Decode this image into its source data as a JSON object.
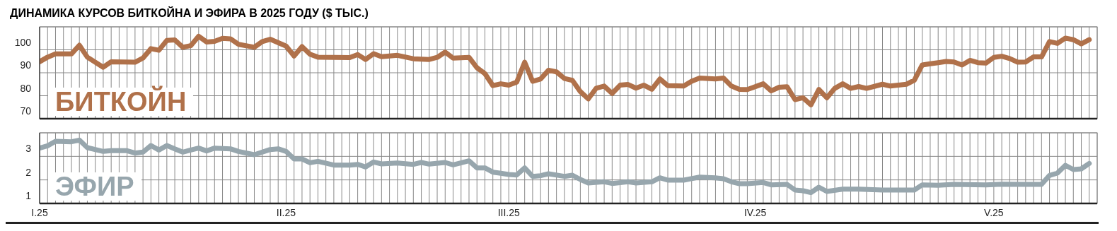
{
  "chart_data": [
    {
      "type": "line",
      "title": "ДИНАМИКА КУРСОВ БИТКОЙНА И ЭФИРА В 2025 ГОДУ ($ ТЫС.)",
      "x": [
        "2025-01-01",
        "2025-01-02",
        "2025-01-03",
        "2025-01-05",
        "2025-01-06",
        "2025-01-07",
        "2025-01-09",
        "2025-01-10",
        "2025-01-13",
        "2025-01-14",
        "2025-01-15",
        "2025-01-16",
        "2025-01-17",
        "2025-01-18",
        "2025-01-19",
        "2025-01-20",
        "2025-01-21",
        "2025-01-22",
        "2025-01-23",
        "2025-01-24",
        "2025-01-25",
        "2025-01-26",
        "2025-01-28",
        "2025-01-29",
        "2025-01-30",
        "2025-02-01",
        "2025-02-02",
        "2025-02-03",
        "2025-02-04",
        "2025-02-05",
        "2025-02-09",
        "2025-02-10",
        "2025-02-11",
        "2025-02-12",
        "2025-02-13",
        "2025-02-15",
        "2025-02-17",
        "2025-02-19",
        "2025-02-20",
        "2025-02-21",
        "2025-02-22",
        "2025-02-24",
        "2025-02-25",
        "2025-02-26",
        "2025-02-27",
        "2025-02-28",
        "2025-03-01",
        "2025-03-02",
        "2025-03-03",
        "2025-03-04",
        "2025-03-05",
        "2025-03-06",
        "2025-03-07",
        "2025-03-08",
        "2025-03-09",
        "2025-03-10",
        "2025-03-11",
        "2025-03-12",
        "2025-03-13",
        "2025-03-14",
        "2025-03-15",
        "2025-03-16",
        "2025-03-17",
        "2025-03-18",
        "2025-03-19",
        "2025-03-20",
        "2025-03-21",
        "2025-03-23",
        "2025-03-24",
        "2025-03-25",
        "2025-03-27",
        "2025-03-28",
        "2025-03-29",
        "2025-03-30",
        "2025-03-31",
        "2025-04-02",
        "2025-04-03",
        "2025-04-04",
        "2025-04-05",
        "2025-04-06",
        "2025-04-07",
        "2025-04-08",
        "2025-04-09",
        "2025-04-10",
        "2025-04-11",
        "2025-04-12",
        "2025-04-13",
        "2025-04-14",
        "2025-04-15",
        "2025-04-17",
        "2025-04-18",
        "2025-04-20",
        "2025-04-21",
        "2025-04-22",
        "2025-04-23",
        "2025-04-24",
        "2025-04-25",
        "2025-04-26",
        "2025-04-27",
        "2025-04-28",
        "2025-04-29",
        "2025-04-30",
        "2025-05-01",
        "2025-05-02",
        "2025-05-03",
        "2025-05-04",
        "2025-05-05",
        "2025-05-06",
        "2025-05-07",
        "2025-05-08",
        "2025-05-09",
        "2025-05-10",
        "2025-05-11",
        "2025-05-12",
        "2025-05-13"
      ],
      "series": [
        {
          "name": "БИТКОЙН",
          "color": "#b0714a",
          "values": [
            94.8,
            96.8,
            98.2,
            98.2,
            102.0,
            96.8,
            92.4,
            94.8,
            94.6,
            96.4,
            100.5,
            99.8,
            104.1,
            104.3,
            101.1,
            101.8,
            105.9,
            103.4,
            103.7,
            105.0,
            104.8,
            102.4,
            101.1,
            103.6,
            104.6,
            101.6,
            97.3,
            101.4,
            98.1,
            96.8,
            96.6,
            97.9,
            95.8,
            98.3,
            97.0,
            97.6,
            96.1,
            95.8,
            96.7,
            99.0,
            96.4,
            96.7,
            92.2,
            89.6,
            84.4,
            85.2,
            84.6,
            85.9,
            94.6,
            86.3,
            87.3,
            91.1,
            90.4,
            87.5,
            86.7,
            81.8,
            78.6,
            83.3,
            84.2,
            81.0,
            84.6,
            84.9,
            83.3,
            84.6,
            82.8,
            87.3,
            84.4,
            84.2,
            86.3,
            87.7,
            87.3,
            87.7,
            84.2,
            82.8,
            82.7,
            85.2,
            82.1,
            83.7,
            83.9,
            78.3,
            79.1,
            76.0,
            82.7,
            79.1,
            83.2,
            85.2,
            83.2,
            84.0,
            83.2,
            85.0,
            84.2,
            85.0,
            86.7,
            93.4,
            93.9,
            94.4,
            94.9,
            94.7,
            93.4,
            95.4,
            94.4,
            94.2,
            96.7,
            97.2,
            96.2,
            94.6,
            94.7,
            96.9,
            96.9,
            103.6,
            102.8,
            105.1,
            104.4,
            102.6,
            104.4
          ]
        }
      ],
      "xlim": [
        "2025-01-01",
        "2025-05-14"
      ],
      "xticks": [
        {
          "value": "2025-01-01",
          "label": null
        },
        {
          "value": "2025-01-02",
          "label": null
        },
        {
          "value": "2025-01-03",
          "label": null
        },
        {
          "value": "2025-01-04",
          "label": null
        },
        {
          "value": "2025-01-05",
          "label": null
        },
        {
          "value": "2025-01-06",
          "label": null
        },
        {
          "value": "2025-01-07",
          "label": null
        },
        {
          "value": "2025-01-08",
          "label": null
        },
        {
          "value": "2025-01-09",
          "label": null
        },
        {
          "value": "2025-01-10",
          "label": null
        },
        {
          "value": "2025-01-11",
          "label": null
        },
        {
          "value": "2025-01-12",
          "label": null
        },
        {
          "value": "2025-01-13",
          "label": null
        },
        {
          "value": "2025-01-14",
          "label": null
        },
        {
          "value": "2025-01-15",
          "label": null
        },
        {
          "value": "2025-01-16",
          "label": null
        },
        {
          "value": "2025-01-17",
          "label": null
        },
        {
          "value": "2025-01-18",
          "label": null
        },
        {
          "value": "2025-01-19",
          "label": null
        },
        {
          "value": "2025-01-20",
          "label": null
        },
        {
          "value": "2025-01-21",
          "label": null
        },
        {
          "value": "2025-01-22",
          "label": null
        },
        {
          "value": "2025-01-23",
          "label": null
        },
        {
          "value": "2025-01-24",
          "label": null
        },
        {
          "value": "2025-01-25",
          "label": null
        },
        {
          "value": "2025-01-26",
          "label": null
        },
        {
          "value": "2025-01-27",
          "label": null
        },
        {
          "value": "2025-01-28",
          "label": null
        },
        {
          "value": "2025-01-29",
          "label": null
        },
        {
          "value": "2025-01-30",
          "label": null
        },
        {
          "value": "2025-01-31",
          "label": null
        },
        {
          "value": "2025-02-01",
          "label": null
        },
        {
          "value": "2025-02-02",
          "label": null
        },
        {
          "value": "2025-02-03",
          "label": null
        },
        {
          "value": "2025-02-04",
          "label": null
        },
        {
          "value": "2025-02-05",
          "label": null
        },
        {
          "value": "2025-02-06",
          "label": null
        },
        {
          "value": "2025-02-07",
          "label": null
        },
        {
          "value": "2025-02-08",
          "label": null
        },
        {
          "value": "2025-02-09",
          "label": null
        },
        {
          "value": "2025-02-10",
          "label": null
        },
        {
          "value": "2025-02-11",
          "label": null
        },
        {
          "value": "2025-02-12",
          "label": null
        },
        {
          "value": "2025-02-13",
          "label": null
        },
        {
          "value": "2025-02-14",
          "label": null
        },
        {
          "value": "2025-02-15",
          "label": null
        },
        {
          "value": "2025-02-16",
          "label": null
        },
        {
          "value": "2025-02-17",
          "label": null
        },
        {
          "value": "2025-02-18",
          "label": null
        },
        {
          "value": "2025-02-19",
          "label": null
        },
        {
          "value": "2025-02-20",
          "label": null
        },
        {
          "value": "2025-02-21",
          "label": null
        },
        {
          "value": "2025-02-22",
          "label": null
        },
        {
          "value": "2025-02-23",
          "label": null
        },
        {
          "value": "2025-02-24",
          "label": null
        },
        {
          "value": "2025-02-25",
          "label": null
        },
        {
          "value": "2025-02-26",
          "label": null
        },
        {
          "value": "2025-02-27",
          "label": null
        },
        {
          "value": "2025-02-28",
          "label": null
        },
        {
          "value": "2025-03-01",
          "label": null
        },
        {
          "value": "2025-03-02",
          "label": null
        },
        {
          "value": "2025-03-03",
          "label": null
        },
        {
          "value": "2025-03-04",
          "label": null
        },
        {
          "value": "2025-03-05",
          "label": null
        },
        {
          "value": "2025-03-06",
          "label": null
        },
        {
          "value": "2025-03-07",
          "label": null
        },
        {
          "value": "2025-03-08",
          "label": null
        },
        {
          "value": "2025-03-09",
          "label": null
        },
        {
          "value": "2025-03-10",
          "label": null
        },
        {
          "value": "2025-03-11",
          "label": null
        },
        {
          "value": "2025-03-12",
          "label": null
        },
        {
          "value": "2025-03-13",
          "label": null
        },
        {
          "value": "2025-03-14",
          "label": null
        },
        {
          "value": "2025-03-15",
          "label": null
        },
        {
          "value": "2025-03-16",
          "label": null
        },
        {
          "value": "2025-03-17",
          "label": null
        },
        {
          "value": "2025-03-18",
          "label": null
        },
        {
          "value": "2025-03-19",
          "label": null
        },
        {
          "value": "2025-03-20",
          "label": null
        },
        {
          "value": "2025-03-21",
          "label": null
        },
        {
          "value": "2025-03-22",
          "label": null
        },
        {
          "value": "2025-03-23",
          "label": null
        },
        {
          "value": "2025-03-24",
          "label": null
        },
        {
          "value": "2025-03-25",
          "label": null
        },
        {
          "value": "2025-03-26",
          "label": null
        },
        {
          "value": "2025-03-27",
          "label": null
        },
        {
          "value": "2025-03-28",
          "label": null
        },
        {
          "value": "2025-03-29",
          "label": null
        },
        {
          "value": "2025-03-30",
          "label": null
        },
        {
          "value": "2025-03-31",
          "label": null
        },
        {
          "value": "2025-04-01",
          "label": null
        },
        {
          "value": "2025-04-02",
          "label": null
        },
        {
          "value": "2025-04-03",
          "label": null
        },
        {
          "value": "2025-04-04",
          "label": null
        },
        {
          "value": "2025-04-05",
          "label": null
        },
        {
          "value": "2025-04-06",
          "label": null
        },
        {
          "value": "2025-04-07",
          "label": null
        },
        {
          "value": "2025-04-08",
          "label": null
        },
        {
          "value": "2025-04-09",
          "label": null
        },
        {
          "value": "2025-04-10",
          "label": null
        },
        {
          "value": "2025-04-11",
          "label": null
        },
        {
          "value": "2025-04-12",
          "label": null
        },
        {
          "value": "2025-04-13",
          "label": null
        },
        {
          "value": "2025-04-14",
          "label": null
        },
        {
          "value": "2025-04-15",
          "label": null
        },
        {
          "value": "2025-04-16",
          "label": null
        },
        {
          "value": "2025-04-17",
          "label": null
        },
        {
          "value": "2025-04-18",
          "label": null
        },
        {
          "value": "2025-04-19",
          "label": null
        },
        {
          "value": "2025-04-20",
          "label": null
        },
        {
          "value": "2025-04-21",
          "label": null
        },
        {
          "value": "2025-04-22",
          "label": null
        },
        {
          "value": "2025-04-23",
          "label": null
        },
        {
          "value": "2025-04-24",
          "label": null
        },
        {
          "value": "2025-04-25",
          "label": null
        },
        {
          "value": "2025-04-26",
          "label": null
        },
        {
          "value": "2025-04-27",
          "label": null
        },
        {
          "value": "2025-04-28",
          "label": null
        },
        {
          "value": "2025-04-29",
          "label": null
        },
        {
          "value": "2025-04-30",
          "label": null
        },
        {
          "value": "2025-05-01",
          "label": null
        },
        {
          "value": "2025-05-02",
          "label": null
        },
        {
          "value": "2025-05-03",
          "label": null
        },
        {
          "value": "2025-05-04",
          "label": null
        },
        {
          "value": "2025-05-05",
          "label": null
        },
        {
          "value": "2025-05-06",
          "label": null
        },
        {
          "value": "2025-05-07",
          "label": null
        },
        {
          "value": "2025-05-08",
          "label": null
        },
        {
          "value": "2025-05-09",
          "label": null
        },
        {
          "value": "2025-05-10",
          "label": null
        },
        {
          "value": "2025-05-11",
          "label": null
        },
        {
          "value": "2025-05-12",
          "label": null
        },
        {
          "value": "2025-05-13",
          "label": null
        }
      ],
      "ylim": [
        70,
        110
      ],
      "yticks": [
        70,
        80,
        90,
        100
      ],
      "grid": true,
      "legend": false,
      "marker": "none",
      "line_style": "solid",
      "tick_labels": "y"
    },
    {
      "type": "line",
      "x": [
        "2025-01-01",
        "2025-01-02",
        "2025-01-03",
        "2025-01-05",
        "2025-01-06",
        "2025-01-07",
        "2025-01-09",
        "2025-01-10",
        "2025-01-12",
        "2025-01-13",
        "2025-01-14",
        "2025-01-15",
        "2025-01-16",
        "2025-01-17",
        "2025-01-18",
        "2025-01-19",
        "2025-01-20",
        "2025-01-21",
        "2025-01-22",
        "2025-01-23",
        "2025-01-25",
        "2025-01-26",
        "2025-01-28",
        "2025-01-30",
        "2025-01-31",
        "2025-02-01",
        "2025-02-02",
        "2025-02-03",
        "2025-02-04",
        "2025-02-05",
        "2025-02-07",
        "2025-02-09",
        "2025-02-10",
        "2025-02-11",
        "2025-02-12",
        "2025-02-13",
        "2025-02-15",
        "2025-02-17",
        "2025-02-18",
        "2025-02-19",
        "2025-02-21",
        "2025-02-22",
        "2025-02-24",
        "2025-02-25",
        "2025-02-26",
        "2025-02-27",
        "2025-02-28",
        "2025-03-01",
        "2025-03-02",
        "2025-03-03",
        "2025-03-04",
        "2025-03-05",
        "2025-03-06",
        "2025-03-08",
        "2025-03-09",
        "2025-03-10",
        "2025-03-11",
        "2025-03-13",
        "2025-03-14",
        "2025-03-16",
        "2025-03-17",
        "2025-03-19",
        "2025-03-20",
        "2025-03-21",
        "2025-03-23",
        "2025-03-25",
        "2025-03-27",
        "2025-03-28",
        "2025-03-29",
        "2025-03-30",
        "2025-03-31",
        "2025-04-02",
        "2025-04-03",
        "2025-04-05",
        "2025-04-06",
        "2025-04-07",
        "2025-04-08",
        "2025-04-09",
        "2025-04-10",
        "2025-04-12",
        "2025-04-14",
        "2025-04-17",
        "2025-04-20",
        "2025-04-21",
        "2025-04-22",
        "2025-04-24",
        "2025-04-26",
        "2025-04-30",
        "2025-05-02",
        "2025-05-05",
        "2025-05-07",
        "2025-05-08",
        "2025-05-09",
        "2025-05-10",
        "2025-05-11",
        "2025-05-12",
        "2025-05-13"
      ],
      "series": [
        {
          "name": "ЭФИР",
          "color": "#97a6ad",
          "values": [
            3.35,
            3.45,
            3.64,
            3.62,
            3.69,
            3.37,
            3.21,
            3.24,
            3.24,
            3.14,
            3.18,
            3.46,
            3.27,
            3.46,
            3.32,
            3.18,
            3.27,
            3.35,
            3.23,
            3.35,
            3.32,
            3.21,
            3.07,
            3.29,
            3.32,
            3.21,
            2.89,
            2.89,
            2.73,
            2.79,
            2.63,
            2.63,
            2.66,
            2.55,
            2.76,
            2.68,
            2.72,
            2.66,
            2.74,
            2.67,
            2.74,
            2.64,
            2.81,
            2.51,
            2.51,
            2.33,
            2.28,
            2.23,
            2.21,
            2.51,
            2.15,
            2.18,
            2.26,
            2.15,
            2.2,
            2.02,
            1.87,
            1.92,
            1.85,
            1.92,
            1.87,
            1.92,
            2.09,
            1.99,
            1.99,
            2.12,
            2.09,
            2.05,
            1.92,
            1.84,
            1.84,
            1.89,
            1.79,
            1.81,
            1.57,
            1.54,
            1.46,
            1.69,
            1.51,
            1.61,
            1.61,
            1.57,
            1.57,
            1.57,
            1.79,
            1.77,
            1.81,
            1.79,
            1.82,
            1.81,
            1.81,
            2.19,
            2.29,
            2.62,
            2.44,
            2.47,
            2.7
          ]
        }
      ],
      "xlim": [
        "2025-01-01",
        "2025-05-14"
      ],
      "xticks": [
        {
          "value": "2025-01-01",
          "label": "I.25"
        },
        {
          "value": "2025-01-02",
          "label": null
        },
        {
          "value": "2025-01-03",
          "label": null
        },
        {
          "value": "2025-01-04",
          "label": null
        },
        {
          "value": "2025-01-05",
          "label": null
        },
        {
          "value": "2025-01-06",
          "label": null
        },
        {
          "value": "2025-01-07",
          "label": null
        },
        {
          "value": "2025-01-08",
          "label": null
        },
        {
          "value": "2025-01-09",
          "label": null
        },
        {
          "value": "2025-01-10",
          "label": null
        },
        {
          "value": "2025-01-11",
          "label": null
        },
        {
          "value": "2025-01-12",
          "label": null
        },
        {
          "value": "2025-01-13",
          "label": null
        },
        {
          "value": "2025-01-14",
          "label": null
        },
        {
          "value": "2025-01-15",
          "label": null
        },
        {
          "value": "2025-01-16",
          "label": null
        },
        {
          "value": "2025-01-17",
          "label": null
        },
        {
          "value": "2025-01-18",
          "label": null
        },
        {
          "value": "2025-01-19",
          "label": null
        },
        {
          "value": "2025-01-20",
          "label": null
        },
        {
          "value": "2025-01-21",
          "label": null
        },
        {
          "value": "2025-01-22",
          "label": null
        },
        {
          "value": "2025-01-23",
          "label": null
        },
        {
          "value": "2025-01-24",
          "label": null
        },
        {
          "value": "2025-01-25",
          "label": null
        },
        {
          "value": "2025-01-26",
          "label": null
        },
        {
          "value": "2025-01-27",
          "label": null
        },
        {
          "value": "2025-01-28",
          "label": null
        },
        {
          "value": "2025-01-29",
          "label": null
        },
        {
          "value": "2025-01-30",
          "label": null
        },
        {
          "value": "2025-01-31",
          "label": null
        },
        {
          "value": "2025-02-01",
          "label": "II.25"
        },
        {
          "value": "2025-02-02",
          "label": null
        },
        {
          "value": "2025-02-03",
          "label": null
        },
        {
          "value": "2025-02-04",
          "label": null
        },
        {
          "value": "2025-02-05",
          "label": null
        },
        {
          "value": "2025-02-06",
          "label": null
        },
        {
          "value": "2025-02-07",
          "label": null
        },
        {
          "value": "2025-02-08",
          "label": null
        },
        {
          "value": "2025-02-09",
          "label": null
        },
        {
          "value": "2025-02-10",
          "label": null
        },
        {
          "value": "2025-02-11",
          "label": null
        },
        {
          "value": "2025-02-12",
          "label": null
        },
        {
          "value": "2025-02-13",
          "label": null
        },
        {
          "value": "2025-02-14",
          "label": null
        },
        {
          "value": "2025-02-15",
          "label": null
        },
        {
          "value": "2025-02-16",
          "label": null
        },
        {
          "value": "2025-02-17",
          "label": null
        },
        {
          "value": "2025-02-18",
          "label": null
        },
        {
          "value": "2025-02-19",
          "label": null
        },
        {
          "value": "2025-02-20",
          "label": null
        },
        {
          "value": "2025-02-21",
          "label": null
        },
        {
          "value": "2025-02-22",
          "label": null
        },
        {
          "value": "2025-02-23",
          "label": null
        },
        {
          "value": "2025-02-24",
          "label": null
        },
        {
          "value": "2025-02-25",
          "label": null
        },
        {
          "value": "2025-02-26",
          "label": null
        },
        {
          "value": "2025-02-27",
          "label": null
        },
        {
          "value": "2025-02-28",
          "label": null
        },
        {
          "value": "2025-03-01",
          "label": "III.25"
        },
        {
          "value": "2025-03-02",
          "label": null
        },
        {
          "value": "2025-03-03",
          "label": null
        },
        {
          "value": "2025-03-04",
          "label": null
        },
        {
          "value": "2025-03-05",
          "label": null
        },
        {
          "value": "2025-03-06",
          "label": null
        },
        {
          "value": "2025-03-07",
          "label": null
        },
        {
          "value": "2025-03-08",
          "label": null
        },
        {
          "value": "2025-03-09",
          "label": null
        },
        {
          "value": "2025-03-10",
          "label": null
        },
        {
          "value": "2025-03-11",
          "label": null
        },
        {
          "value": "2025-03-12",
          "label": null
        },
        {
          "value": "2025-03-13",
          "label": null
        },
        {
          "value": "2025-03-14",
          "label": null
        },
        {
          "value": "2025-03-15",
          "label": null
        },
        {
          "value": "2025-03-16",
          "label": null
        },
        {
          "value": "2025-03-17",
          "label": null
        },
        {
          "value": "2025-03-18",
          "label": null
        },
        {
          "value": "2025-03-19",
          "label": null
        },
        {
          "value": "2025-03-20",
          "label": null
        },
        {
          "value": "2025-03-21",
          "label": null
        },
        {
          "value": "2025-03-22",
          "label": null
        },
        {
          "value": "2025-03-23",
          "label": null
        },
        {
          "value": "2025-03-24",
          "label": null
        },
        {
          "value": "2025-03-25",
          "label": null
        },
        {
          "value": "2025-03-26",
          "label": null
        },
        {
          "value": "2025-03-27",
          "label": null
        },
        {
          "value": "2025-03-28",
          "label": null
        },
        {
          "value": "2025-03-29",
          "label": null
        },
        {
          "value": "2025-03-30",
          "label": null
        },
        {
          "value": "2025-03-31",
          "label": null
        },
        {
          "value": "2025-04-01",
          "label": "IV.25"
        },
        {
          "value": "2025-04-02",
          "label": null
        },
        {
          "value": "2025-04-03",
          "label": null
        },
        {
          "value": "2025-04-04",
          "label": null
        },
        {
          "value": "2025-04-05",
          "label": null
        },
        {
          "value": "2025-04-06",
          "label": null
        },
        {
          "value": "2025-04-07",
          "label": null
        },
        {
          "value": "2025-04-08",
          "label": null
        },
        {
          "value": "2025-04-09",
          "label": null
        },
        {
          "value": "2025-04-10",
          "label": null
        },
        {
          "value": "2025-04-11",
          "label": null
        },
        {
          "value": "2025-04-12",
          "label": null
        },
        {
          "value": "2025-04-13",
          "label": null
        },
        {
          "value": "2025-04-14",
          "label": null
        },
        {
          "value": "2025-04-15",
          "label": null
        },
        {
          "value": "2025-04-16",
          "label": null
        },
        {
          "value": "2025-04-17",
          "label": null
        },
        {
          "value": "2025-04-18",
          "label": null
        },
        {
          "value": "2025-04-19",
          "label": null
        },
        {
          "value": "2025-04-20",
          "label": null
        },
        {
          "value": "2025-04-21",
          "label": null
        },
        {
          "value": "2025-04-22",
          "label": null
        },
        {
          "value": "2025-04-23",
          "label": null
        },
        {
          "value": "2025-04-24",
          "label": null
        },
        {
          "value": "2025-04-25",
          "label": null
        },
        {
          "value": "2025-04-26",
          "label": null
        },
        {
          "value": "2025-04-27",
          "label": null
        },
        {
          "value": "2025-04-28",
          "label": null
        },
        {
          "value": "2025-04-29",
          "label": null
        },
        {
          "value": "2025-04-30",
          "label": null
        },
        {
          "value": "2025-05-01",
          "label": "V.25"
        },
        {
          "value": "2025-05-02",
          "label": null
        },
        {
          "value": "2025-05-03",
          "label": null
        },
        {
          "value": "2025-05-04",
          "label": null
        },
        {
          "value": "2025-05-05",
          "label": null
        },
        {
          "value": "2025-05-06",
          "label": null
        },
        {
          "value": "2025-05-07",
          "label": null
        },
        {
          "value": "2025-05-08",
          "label": null
        },
        {
          "value": "2025-05-09",
          "label": null
        },
        {
          "value": "2025-05-10",
          "label": null
        },
        {
          "value": "2025-05-11",
          "label": null
        },
        {
          "value": "2025-05-12",
          "label": null
        },
        {
          "value": "2025-05-13",
          "label": null
        }
      ],
      "ylim": [
        1,
        4
      ],
      "yticks": [
        1,
        2,
        3
      ],
      "grid": true,
      "legend": false,
      "marker": "none",
      "line_style": "solid"
    }
  ]
}
